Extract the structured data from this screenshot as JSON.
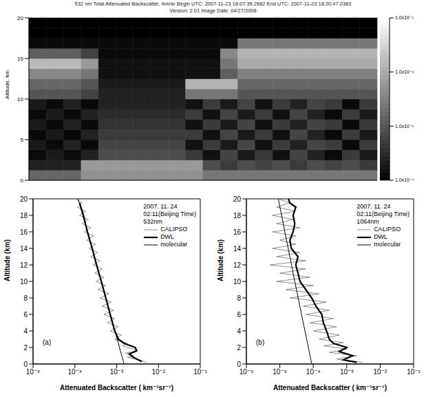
{
  "chart_data": [
    {
      "type": "heatmap",
      "title": "532 nm Total Attenuated Backscatter, /km/sr   Begin UTC: 2007-11-23 18:07:39.2682   End UTC: 2007-11-23 18:20:47.0383",
      "subtitle": "Version: 2.01   Image Date: 04/27/2008",
      "y_label": "Altitude, km",
      "ylim": [
        0,
        20
      ],
      "yticks": [
        0,
        5,
        10,
        15,
        20
      ],
      "tick_labels": "y",
      "x_edges": [
        0,
        1,
        2,
        3,
        4,
        5,
        6,
        7,
        8,
        9,
        10,
        11,
        12,
        13,
        14,
        15,
        16,
        17,
        18,
        19,
        20
      ],
      "y_edges": [
        0,
        1.25,
        2.5,
        3.75,
        5,
        6.25,
        7.5,
        8.75,
        10,
        11.25,
        12.5,
        13.75,
        15,
        16.25,
        17.5,
        18.75,
        20
      ],
      "cells": [
        [
          0.0016,
          0.0016,
          0.0016,
          0.005,
          0.005,
          0.005,
          0.005,
          0.005,
          0.005,
          0.005,
          0.0025,
          0.0025,
          0.0025,
          0.0025,
          0.0025,
          0.0025,
          0.0025,
          0.0025,
          0.0025,
          0.0025
        ],
        [
          0.00025,
          0.00025,
          0.00025,
          0.0063,
          0.0063,
          0.0063,
          0.0063,
          0.0063,
          0.0063,
          0.0063,
          0.0008,
          0.0005,
          0.0008,
          0.00063,
          0.0008,
          0.0005,
          0.0008,
          0.00063,
          0.0008,
          0.0005
        ],
        [
          0.00013,
          0.0002,
          0.00013,
          0.00025,
          0.0008,
          0.0008,
          0.0008,
          0.0008,
          0.0008,
          0.0005,
          0.00016,
          0.00063,
          0.0002,
          0.0005,
          0.00016,
          0.00063,
          0.00025,
          0.00013,
          0.0005,
          0.0002
        ],
        [
          0.0002,
          0.00013,
          0.00025,
          0.00013,
          0.00063,
          0.00063,
          0.00063,
          0.00063,
          0.00063,
          0.00016,
          0.0005,
          0.0002,
          0.00063,
          0.00016,
          0.0005,
          0.00025,
          0.00063,
          0.0005,
          0.00013,
          0.0005
        ],
        [
          0.00013,
          0.0002,
          0.00013,
          0.00025,
          0.0005,
          0.0005,
          0.0005,
          0.0005,
          0.0005,
          0.0005,
          0.00016,
          0.00063,
          0.0002,
          0.0005,
          0.00016,
          0.00063,
          0.00025,
          0.00013,
          0.0005,
          0.0002
        ],
        [
          0.0002,
          0.00013,
          0.00025,
          0.00013,
          0.0004,
          0.0004,
          0.0004,
          0.0004,
          0.0004,
          0.00016,
          0.0005,
          0.0002,
          0.00063,
          0.00016,
          0.0005,
          0.00025,
          0.00063,
          0.0005,
          0.00013,
          0.0005
        ],
        [
          0.00013,
          0.0002,
          0.00013,
          0.00025,
          0.00032,
          0.00032,
          0.00032,
          0.00032,
          0.00032,
          0.0005,
          0.00016,
          0.00063,
          0.0002,
          0.0005,
          0.00016,
          0.00063,
          0.00025,
          0.00013,
          0.0005,
          0.0002
        ],
        [
          0.0002,
          0.00013,
          0.00025,
          0.00013,
          0.00025,
          0.00025,
          0.00025,
          0.00025,
          0.00025,
          0.00016,
          0.0005,
          0.0002,
          0.00063,
          0.00016,
          0.0005,
          0.00025,
          0.00063,
          0.0005,
          0.00013,
          0.0005
        ],
        [
          0.001,
          0.001,
          0.001,
          0.00063,
          0.00025,
          0.00025,
          0.00025,
          0.00025,
          0.00025,
          0.0025,
          0.0025,
          0.0025,
          0.001,
          0.001,
          0.001,
          0.001,
          0.001,
          0.001,
          0.001,
          0.001
        ],
        [
          0.0016,
          0.0016,
          0.0016,
          0.001,
          0.0002,
          0.0002,
          0.0002,
          0.0002,
          0.0002,
          0.013,
          0.013,
          0.013,
          0.0016,
          0.0016,
          0.0016,
          0.0016,
          0.0016,
          0.0016,
          0.0016,
          0.0016
        ],
        [
          0.004,
          0.004,
          0.004,
          0.0025,
          0.00016,
          0.00016,
          0.00016,
          0.00016,
          0.00016,
          0.00016,
          0.00016,
          0.0013,
          0.0032,
          0.0032,
          0.0032,
          0.0032,
          0.0032,
          0.0032,
          0.0032,
          0.0032
        ],
        [
          0.016,
          0.016,
          0.016,
          0.0063,
          0.00016,
          0.00016,
          0.00016,
          0.00016,
          0.00016,
          0.00016,
          0.00016,
          0.0025,
          0.01,
          0.01,
          0.01,
          0.01,
          0.01,
          0.01,
          0.01,
          0.01
        ],
        [
          0.0013,
          0.0013,
          0.0013,
          0.00063,
          0.00013,
          0.00013,
          0.00013,
          0.00013,
          0.00013,
          0.00013,
          0.00013,
          0.004,
          0.013,
          0.013,
          0.013,
          0.013,
          0.013,
          0.013,
          0.013,
          0.013
        ],
        [
          0.00013,
          0.00013,
          0.00013,
          0.00013,
          0.00013,
          0.00013,
          0.00013,
          0.00013,
          0.00013,
          0.00013,
          0.00013,
          0.00013,
          0.0025,
          0.0025,
          0.0025,
          0.0025,
          0.0025,
          0.0025,
          0.0025,
          0.0025
        ],
        [
          0.0001,
          0.0001,
          0.0001,
          0.0001,
          0.0001,
          0.0001,
          0.0001,
          0.0001,
          0.0001,
          0.0001,
          0.0001,
          0.0001,
          0.0001,
          0.0001,
          0.0001,
          0.0001,
          0.0001,
          0.0001,
          0.0001,
          0.0001
        ],
        [
          0.0001,
          0.0001,
          0.0001,
          0.0001,
          0.0001,
          0.0001,
          0.0001,
          0.0001,
          0.0001,
          0.0001,
          0.0001,
          0.0001,
          0.0001,
          0.0001,
          0.0001,
          0.0001,
          0.0001,
          0.0001,
          0.0001,
          0.0001
        ]
      ],
      "colorbar": {
        "log": true,
        "range": [
          0.0001,
          0.1
        ],
        "ticks": [
          {
            "value": 0.0001,
            "label": "1.0x10⁻⁴"
          },
          {
            "value": 0.001,
            "label": "1.0x10⁻³"
          },
          {
            "value": 0.01,
            "label": "1.0x10⁻²"
          },
          {
            "value": 0.1,
            "label": "1.0x10⁻¹"
          }
        ]
      }
    },
    {
      "type": "line",
      "panel": "(a)",
      "annotations": [
        "2007. 11. 24",
        "02:11(Beijing Time)",
        "532nm"
      ],
      "x_label": "Attenuated Backscatter ( km⁻¹sr⁻¹)",
      "y_label": "Altitude (km)",
      "log": "x",
      "xlim": [
        1e-05,
        0.1
      ],
      "xticks": [
        {
          "value": 1e-05,
          "label": "10⁻⁵"
        },
        {
          "value": 0.0001,
          "label": "10⁻⁴"
        },
        {
          "value": 0.001,
          "label": "10⁻³"
        },
        {
          "value": 0.01,
          "label": "10⁻²"
        },
        {
          "value": 0.1,
          "label": "10⁻¹"
        }
      ],
      "ylim": [
        0,
        20
      ],
      "yticks": [
        0,
        2,
        4,
        6,
        8,
        10,
        12,
        14,
        16,
        18,
        20
      ],
      "series": [
        {
          "name": "CALIPSO",
          "color": "#8c8c8c",
          "line_style": "solid",
          "x": [
            0.005,
            0.0035,
            0.0018,
            0.0026,
            0.0016,
            0.0032,
            0.0022,
            0.0014,
            0.0018,
            0.0009,
            0.0013,
            0.0007,
            0.0011,
            0.0006,
            0.0009,
            0.0005,
            0.00085,
            0.00045,
            0.00075,
            0.0004,
            0.00065,
            0.00036,
            0.00055,
            0.00032,
            0.0005,
            0.0003,
            0.00045,
            0.00027,
            0.0004,
            0.00024,
            0.00035,
            0.00022,
            0.00031,
            0.00019,
            0.00028,
            0.00017,
            0.00024,
            0.00015,
            0.00021,
            0.00013,
            0.00018,
            0.000115,
            0.00015,
            0.0001
          ],
          "y": [
            0.2,
            0.5,
            0.8,
            1.0,
            1.3,
            1.6,
            1.9,
            2.2,
            2.5,
            3.0,
            3.5,
            4.0,
            4.5,
            5.0,
            5.5,
            6.0,
            6.5,
            7.0,
            7.5,
            8.0,
            8.5,
            9.0,
            9.5,
            10.0,
            10.5,
            11.0,
            11.5,
            12.0,
            12.5,
            13.0,
            13.5,
            14.0,
            14.5,
            15.0,
            15.5,
            16.0,
            16.5,
            17.0,
            17.5,
            18.0,
            18.5,
            19.0,
            19.5,
            20.0
          ]
        },
        {
          "name": "DWL",
          "color": "#000000",
          "line_style": "solid",
          "x": [
            0.004,
            0.0025,
            0.002,
            0.003,
            0.0028,
            0.0015,
            0.0011,
            0.0009,
            0.0007,
            0.00055,
            0.00043,
            0.00033,
            0.00026,
            0.0002,
            0.00016,
            0.00013
          ],
          "y": [
            0.3,
            0.8,
            1.2,
            1.6,
            2.0,
            2.5,
            3,
            4,
            6,
            8,
            10,
            12,
            14,
            16,
            18,
            19.5
          ]
        },
        {
          "name": "molecular",
          "color": "#000000",
          "line_style": "solid",
          "x": [
            0.0015,
            0.00043,
            0.00012
          ],
          "y": [
            0,
            10,
            20
          ]
        }
      ]
    },
    {
      "type": "line",
      "panel": "(b)",
      "annotations": [
        "2007. 11. 24",
        "02:11(Beijing Time)",
        "1064nm"
      ],
      "x_label": "Attenuated Backscatter ( km⁻¹sr⁻¹)",
      "y_label": "Altitude (km)",
      "log": "x",
      "xlim": [
        1e-06,
        0.1
      ],
      "xticks": [
        {
          "value": 1e-06,
          "label": "10⁻⁶"
        },
        {
          "value": 1e-05,
          "label": "10⁻⁵"
        },
        {
          "value": 0.0001,
          "label": "10⁻⁴"
        },
        {
          "value": 0.001,
          "label": "10⁻³"
        },
        {
          "value": 0.01,
          "label": "10⁻²"
        },
        {
          "value": 0.1,
          "label": "10⁻¹"
        }
      ],
      "ylim": [
        0,
        20
      ],
      "yticks": [
        0,
        2,
        4,
        6,
        8,
        10,
        12,
        14,
        16,
        18,
        20
      ],
      "series": [
        {
          "name": "CALIPSO",
          "color": "#8c8c8c",
          "line_style": "solid",
          "x": [
            0.003,
            0.0005,
            0.002,
            0.0003,
            0.001,
            0.0002,
            0.0008,
            0.00015,
            0.0006,
            0.0001,
            0.0005,
            8e-05,
            0.0004,
            6e-05,
            0.0003,
            5e-05,
            0.00025,
            2e-05,
            0.00015,
            1.5e-05,
            0.0001,
            8e-06,
            8e-05,
            1e-05,
            6e-05,
            5e-06,
            6e-05,
            8e-06,
            4e-05,
            6e-06,
            3e-05,
            1e-05,
            3e-05,
            6e-06,
            4e-05,
            8e-06,
            2.5e-05,
            6e-06,
            3e-05,
            8e-06,
            2e-05,
            9e-06
          ],
          "y": [
            0.2,
            0.6,
            1.0,
            1.4,
            1.8,
            2.2,
            2.6,
            3.0,
            3.5,
            4.0,
            4.5,
            5.0,
            5.5,
            6.0,
            6.5,
            7.0,
            7.5,
            8.0,
            8.5,
            9.0,
            9.5,
            10.0,
            10.5,
            11.0,
            11.5,
            12.0,
            12.5,
            13.0,
            13.5,
            14.0,
            14.5,
            15.0,
            15.5,
            16.0,
            16.5,
            17.0,
            17.5,
            18.0,
            18.5,
            19.0,
            19.5,
            20.0
          ]
        },
        {
          "name": "DWL",
          "color": "#000000",
          "line_style": "solid",
          "x": [
            0.002,
            0.0008,
            0.0015,
            0.0006,
            0.001,
            0.0004,
            0.0003,
            0.00025,
            0.0002,
            0.00018,
            0.00012,
            9e-05,
            6e-05,
            4e-05,
            3.5e-05,
            3e-05,
            3.5e-05,
            2.2e-05,
            2e-05,
            2.5e-05,
            2.8e-05,
            2.5e-05,
            3e-05,
            2e-05,
            1.8e-05
          ],
          "y": [
            0.2,
            0.5,
            1,
            1.5,
            2,
            2.5,
            3,
            4,
            5,
            6,
            7,
            8,
            9,
            10,
            11,
            12,
            13,
            14,
            15,
            16,
            17,
            18,
            19,
            19.5,
            20
          ]
        },
        {
          "name": "molecular",
          "color": "#000000",
          "line_style": "solid",
          "x": [
            9e-05,
            2.8e-05,
            9e-06
          ],
          "y": [
            0,
            10,
            20
          ]
        }
      ]
    }
  ]
}
